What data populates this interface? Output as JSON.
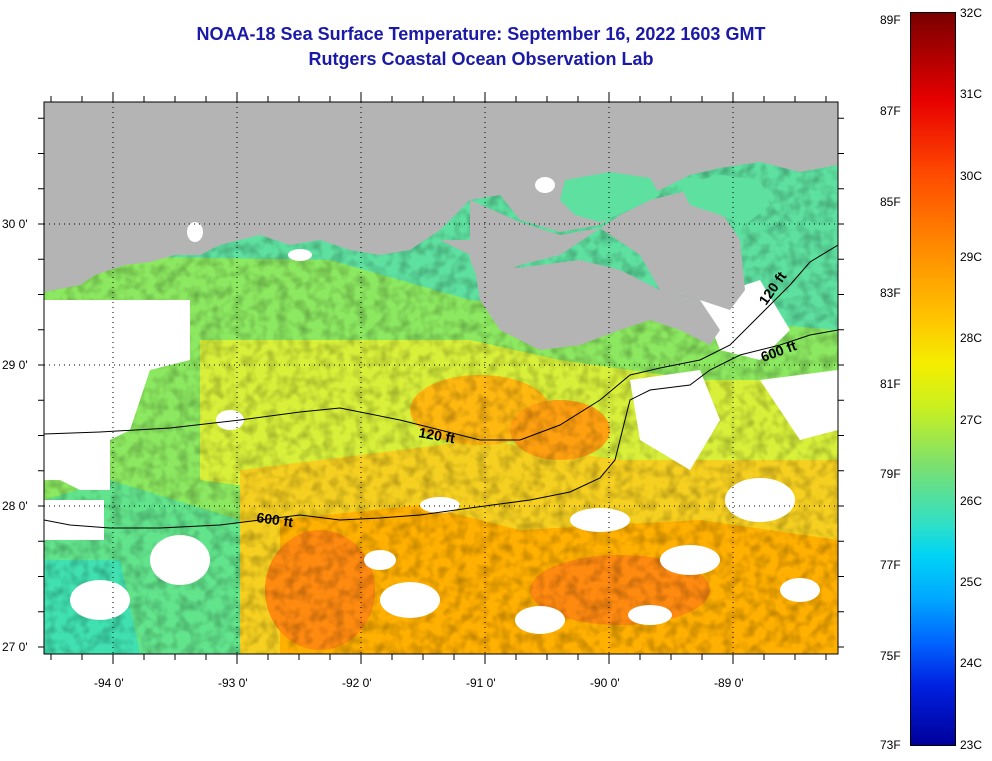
{
  "title": {
    "line1": "NOAA-18 Sea Surface Temperature:  September 16, 2022 1603 GMT",
    "line2": "Rutgers Coastal Ocean Observation Lab"
  },
  "map": {
    "lat_labels": [
      "30 0'",
      "29 0'",
      "28 0'",
      "27 0'"
    ],
    "lon_labels": [
      "-94 0'",
      "-93 0'",
      "-92 0'",
      "-91 0'",
      "-90 0'",
      "-89 0'"
    ],
    "contour_labels": {
      "shelf_120_west": "120 ft",
      "shelf_120_east": "120 ft",
      "shelf_600_west": "600 ft",
      "shelf_600_east": "600 ft"
    },
    "colors": {
      "land": "#b4b4b4",
      "cloud": "#ffffff",
      "contour": "#000000"
    }
  },
  "colorbar": {
    "fahrenheit": [
      "89F",
      "87F",
      "85F",
      "83F",
      "81F",
      "79F",
      "77F",
      "75F",
      "73F"
    ],
    "celsius": [
      "32C",
      "31C",
      "30C",
      "29C",
      "28C",
      "27C",
      "26C",
      "25C",
      "24C",
      "23C"
    ]
  }
}
